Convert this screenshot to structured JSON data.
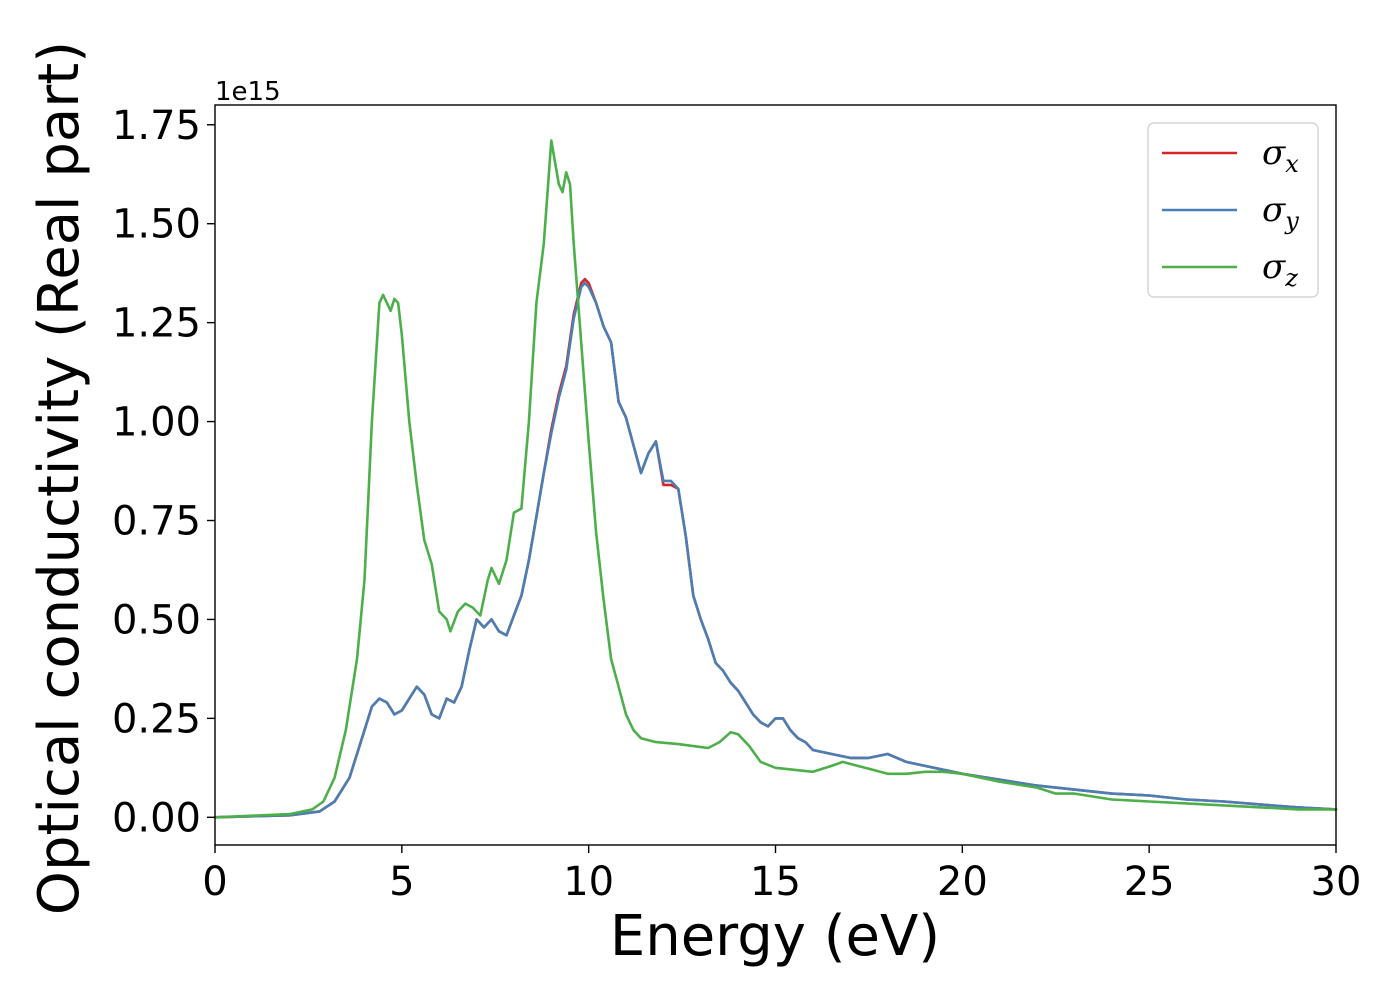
{
  "chart_data": {
    "type": "line",
    "title": "",
    "xlabel": "Energy (eV)",
    "ylabel": "Optical conductivity (Real part)",
    "y_offset_label": "1e15",
    "xlim": [
      0,
      30
    ],
    "ylim": [
      -0.07,
      1.8
    ],
    "x_ticks": [
      0,
      5,
      10,
      15,
      20,
      25,
      30
    ],
    "x_tick_labels": [
      "0",
      "5",
      "10",
      "15",
      "20",
      "25",
      "30"
    ],
    "y_ticks": [
      0.0,
      0.25,
      0.5,
      0.75,
      1.0,
      1.25,
      1.5,
      1.75
    ],
    "y_tick_labels": [
      "0.00",
      "0.25",
      "0.50",
      "0.75",
      "1.00",
      "1.25",
      "1.50",
      "1.75"
    ],
    "grid": false,
    "legend_position": "top-right",
    "series": [
      {
        "name": "σx",
        "legend_symbol": "σ",
        "legend_sub": "x",
        "color": "#d62728",
        "points": [
          [
            0,
            0
          ],
          [
            2,
            0.005
          ],
          [
            2.8,
            0.015
          ],
          [
            3.2,
            0.04
          ],
          [
            3.6,
            0.1
          ],
          [
            4.0,
            0.22
          ],
          [
            4.2,
            0.28
          ],
          [
            4.4,
            0.3
          ],
          [
            4.6,
            0.29
          ],
          [
            4.8,
            0.26
          ],
          [
            5.0,
            0.27
          ],
          [
            5.2,
            0.3
          ],
          [
            5.4,
            0.33
          ],
          [
            5.6,
            0.31
          ],
          [
            5.8,
            0.26
          ],
          [
            6.0,
            0.25
          ],
          [
            6.2,
            0.3
          ],
          [
            6.4,
            0.29
          ],
          [
            6.6,
            0.33
          ],
          [
            6.8,
            0.42
          ],
          [
            7.0,
            0.5
          ],
          [
            7.2,
            0.48
          ],
          [
            7.4,
            0.5
          ],
          [
            7.6,
            0.47
          ],
          [
            7.8,
            0.46
          ],
          [
            8.0,
            0.51
          ],
          [
            8.2,
            0.56
          ],
          [
            8.4,
            0.65
          ],
          [
            8.6,
            0.76
          ],
          [
            8.8,
            0.87
          ],
          [
            9.0,
            0.98
          ],
          [
            9.2,
            1.07
          ],
          [
            9.4,
            1.14
          ],
          [
            9.6,
            1.27
          ],
          [
            9.8,
            1.35
          ],
          [
            9.9,
            1.36
          ],
          [
            10.0,
            1.35
          ],
          [
            10.2,
            1.3
          ],
          [
            10.4,
            1.24
          ],
          [
            10.6,
            1.2
          ],
          [
            10.8,
            1.05
          ],
          [
            11.0,
            1.01
          ],
          [
            11.2,
            0.94
          ],
          [
            11.4,
            0.87
          ],
          [
            11.6,
            0.92
          ],
          [
            11.8,
            0.95
          ],
          [
            12.0,
            0.84
          ],
          [
            12.2,
            0.84
          ],
          [
            12.4,
            0.83
          ],
          [
            12.6,
            0.71
          ],
          [
            12.8,
            0.56
          ],
          [
            13.0,
            0.5
          ],
          [
            13.2,
            0.45
          ],
          [
            13.4,
            0.39
          ],
          [
            13.6,
            0.37
          ],
          [
            13.8,
            0.34
          ],
          [
            14.0,
            0.32
          ],
          [
            14.2,
            0.29
          ],
          [
            14.4,
            0.26
          ],
          [
            14.6,
            0.24
          ],
          [
            14.8,
            0.23
          ],
          [
            15.0,
            0.25
          ],
          [
            15.2,
            0.25
          ],
          [
            15.4,
            0.22
          ],
          [
            15.6,
            0.2
          ],
          [
            15.8,
            0.19
          ],
          [
            16.0,
            0.17
          ],
          [
            16.5,
            0.16
          ],
          [
            17.0,
            0.15
          ],
          [
            17.5,
            0.15
          ],
          [
            18.0,
            0.16
          ],
          [
            18.5,
            0.14
          ],
          [
            19.0,
            0.13
          ],
          [
            19.5,
            0.12
          ],
          [
            20.0,
            0.11
          ],
          [
            21.0,
            0.095
          ],
          [
            22.0,
            0.08
          ],
          [
            23.0,
            0.07
          ],
          [
            24.0,
            0.06
          ],
          [
            25.0,
            0.055
          ],
          [
            26.0,
            0.045
          ],
          [
            27.0,
            0.04
          ],
          [
            28.0,
            0.032
          ],
          [
            29.0,
            0.025
          ],
          [
            30.0,
            0.02
          ]
        ]
      },
      {
        "name": "σy",
        "legend_symbol": "σ",
        "legend_sub": "y",
        "color": "#4a7fb5",
        "points": [
          [
            0,
            0
          ],
          [
            2,
            0.005
          ],
          [
            2.8,
            0.015
          ],
          [
            3.2,
            0.04
          ],
          [
            3.6,
            0.1
          ],
          [
            4.0,
            0.22
          ],
          [
            4.2,
            0.28
          ],
          [
            4.4,
            0.3
          ],
          [
            4.6,
            0.29
          ],
          [
            4.8,
            0.26
          ],
          [
            5.0,
            0.27
          ],
          [
            5.2,
            0.3
          ],
          [
            5.4,
            0.33
          ],
          [
            5.6,
            0.31
          ],
          [
            5.8,
            0.26
          ],
          [
            6.0,
            0.25
          ],
          [
            6.2,
            0.3
          ],
          [
            6.4,
            0.29
          ],
          [
            6.6,
            0.33
          ],
          [
            6.8,
            0.42
          ],
          [
            7.0,
            0.5
          ],
          [
            7.2,
            0.48
          ],
          [
            7.4,
            0.5
          ],
          [
            7.6,
            0.47
          ],
          [
            7.8,
            0.46
          ],
          [
            8.0,
            0.51
          ],
          [
            8.2,
            0.56
          ],
          [
            8.4,
            0.65
          ],
          [
            8.6,
            0.76
          ],
          [
            8.8,
            0.87
          ],
          [
            9.0,
            0.97
          ],
          [
            9.2,
            1.06
          ],
          [
            9.4,
            1.13
          ],
          [
            9.6,
            1.26
          ],
          [
            9.8,
            1.34
          ],
          [
            9.9,
            1.35
          ],
          [
            10.0,
            1.34
          ],
          [
            10.2,
            1.3
          ],
          [
            10.4,
            1.24
          ],
          [
            10.6,
            1.2
          ],
          [
            10.8,
            1.05
          ],
          [
            11.0,
            1.01
          ],
          [
            11.2,
            0.94
          ],
          [
            11.4,
            0.87
          ],
          [
            11.6,
            0.92
          ],
          [
            11.8,
            0.95
          ],
          [
            12.0,
            0.85
          ],
          [
            12.2,
            0.85
          ],
          [
            12.4,
            0.83
          ],
          [
            12.6,
            0.71
          ],
          [
            12.8,
            0.56
          ],
          [
            13.0,
            0.5
          ],
          [
            13.2,
            0.45
          ],
          [
            13.4,
            0.39
          ],
          [
            13.6,
            0.37
          ],
          [
            13.8,
            0.34
          ],
          [
            14.0,
            0.32
          ],
          [
            14.2,
            0.29
          ],
          [
            14.4,
            0.26
          ],
          [
            14.6,
            0.24
          ],
          [
            14.8,
            0.23
          ],
          [
            15.0,
            0.25
          ],
          [
            15.2,
            0.25
          ],
          [
            15.4,
            0.22
          ],
          [
            15.6,
            0.2
          ],
          [
            15.8,
            0.19
          ],
          [
            16.0,
            0.17
          ],
          [
            16.5,
            0.16
          ],
          [
            17.0,
            0.15
          ],
          [
            17.5,
            0.15
          ],
          [
            18.0,
            0.16
          ],
          [
            18.5,
            0.14
          ],
          [
            19.0,
            0.13
          ],
          [
            19.5,
            0.12
          ],
          [
            20.0,
            0.11
          ],
          [
            21.0,
            0.095
          ],
          [
            22.0,
            0.08
          ],
          [
            23.0,
            0.07
          ],
          [
            24.0,
            0.06
          ],
          [
            25.0,
            0.055
          ],
          [
            26.0,
            0.045
          ],
          [
            27.0,
            0.04
          ],
          [
            28.0,
            0.032
          ],
          [
            29.0,
            0.025
          ],
          [
            30.0,
            0.02
          ]
        ]
      },
      {
        "name": "σz",
        "legend_symbol": "σ",
        "legend_sub": "z",
        "color": "#4daf4a",
        "points": [
          [
            0,
            0
          ],
          [
            2,
            0.008
          ],
          [
            2.6,
            0.02
          ],
          [
            2.9,
            0.04
          ],
          [
            3.2,
            0.1
          ],
          [
            3.5,
            0.22
          ],
          [
            3.8,
            0.4
          ],
          [
            4.0,
            0.6
          ],
          [
            4.2,
            1.0
          ],
          [
            4.4,
            1.3
          ],
          [
            4.5,
            1.32
          ],
          [
            4.6,
            1.3
          ],
          [
            4.7,
            1.28
          ],
          [
            4.8,
            1.31
          ],
          [
            4.9,
            1.3
          ],
          [
            5.0,
            1.22
          ],
          [
            5.2,
            1.0
          ],
          [
            5.4,
            0.84
          ],
          [
            5.6,
            0.7
          ],
          [
            5.8,
            0.64
          ],
          [
            6.0,
            0.52
          ],
          [
            6.2,
            0.5
          ],
          [
            6.3,
            0.47
          ],
          [
            6.5,
            0.52
          ],
          [
            6.7,
            0.54
          ],
          [
            6.9,
            0.53
          ],
          [
            7.1,
            0.51
          ],
          [
            7.3,
            0.6
          ],
          [
            7.4,
            0.63
          ],
          [
            7.6,
            0.59
          ],
          [
            7.8,
            0.65
          ],
          [
            8.0,
            0.77
          ],
          [
            8.2,
            0.78
          ],
          [
            8.4,
            1.0
          ],
          [
            8.6,
            1.3
          ],
          [
            8.8,
            1.45
          ],
          [
            9.0,
            1.71
          ],
          [
            9.2,
            1.6
          ],
          [
            9.3,
            1.58
          ],
          [
            9.4,
            1.63
          ],
          [
            9.5,
            1.6
          ],
          [
            9.6,
            1.45
          ],
          [
            9.8,
            1.2
          ],
          [
            10.0,
            0.95
          ],
          [
            10.2,
            0.72
          ],
          [
            10.4,
            0.55
          ],
          [
            10.6,
            0.4
          ],
          [
            10.8,
            0.33
          ],
          [
            11.0,
            0.26
          ],
          [
            11.2,
            0.22
          ],
          [
            11.4,
            0.2
          ],
          [
            11.8,
            0.19
          ],
          [
            12.4,
            0.185
          ],
          [
            12.8,
            0.18
          ],
          [
            13.2,
            0.175
          ],
          [
            13.5,
            0.19
          ],
          [
            13.8,
            0.215
          ],
          [
            14.0,
            0.21
          ],
          [
            14.3,
            0.18
          ],
          [
            14.6,
            0.14
          ],
          [
            15.0,
            0.125
          ],
          [
            15.5,
            0.12
          ],
          [
            16.0,
            0.115
          ],
          [
            16.5,
            0.13
          ],
          [
            16.8,
            0.14
          ],
          [
            17.2,
            0.13
          ],
          [
            17.6,
            0.12
          ],
          [
            18.0,
            0.11
          ],
          [
            18.5,
            0.11
          ],
          [
            19.0,
            0.115
          ],
          [
            19.5,
            0.115
          ],
          [
            20.0,
            0.11
          ],
          [
            20.5,
            0.1
          ],
          [
            21.0,
            0.09
          ],
          [
            22.0,
            0.075
          ],
          [
            22.5,
            0.06
          ],
          [
            23.0,
            0.06
          ],
          [
            24.0,
            0.045
          ],
          [
            25.0,
            0.04
          ],
          [
            26.0,
            0.035
          ],
          [
            27.0,
            0.03
          ],
          [
            28.0,
            0.025
          ],
          [
            29.0,
            0.02
          ],
          [
            30.0,
            0.02
          ]
        ]
      }
    ]
  }
}
